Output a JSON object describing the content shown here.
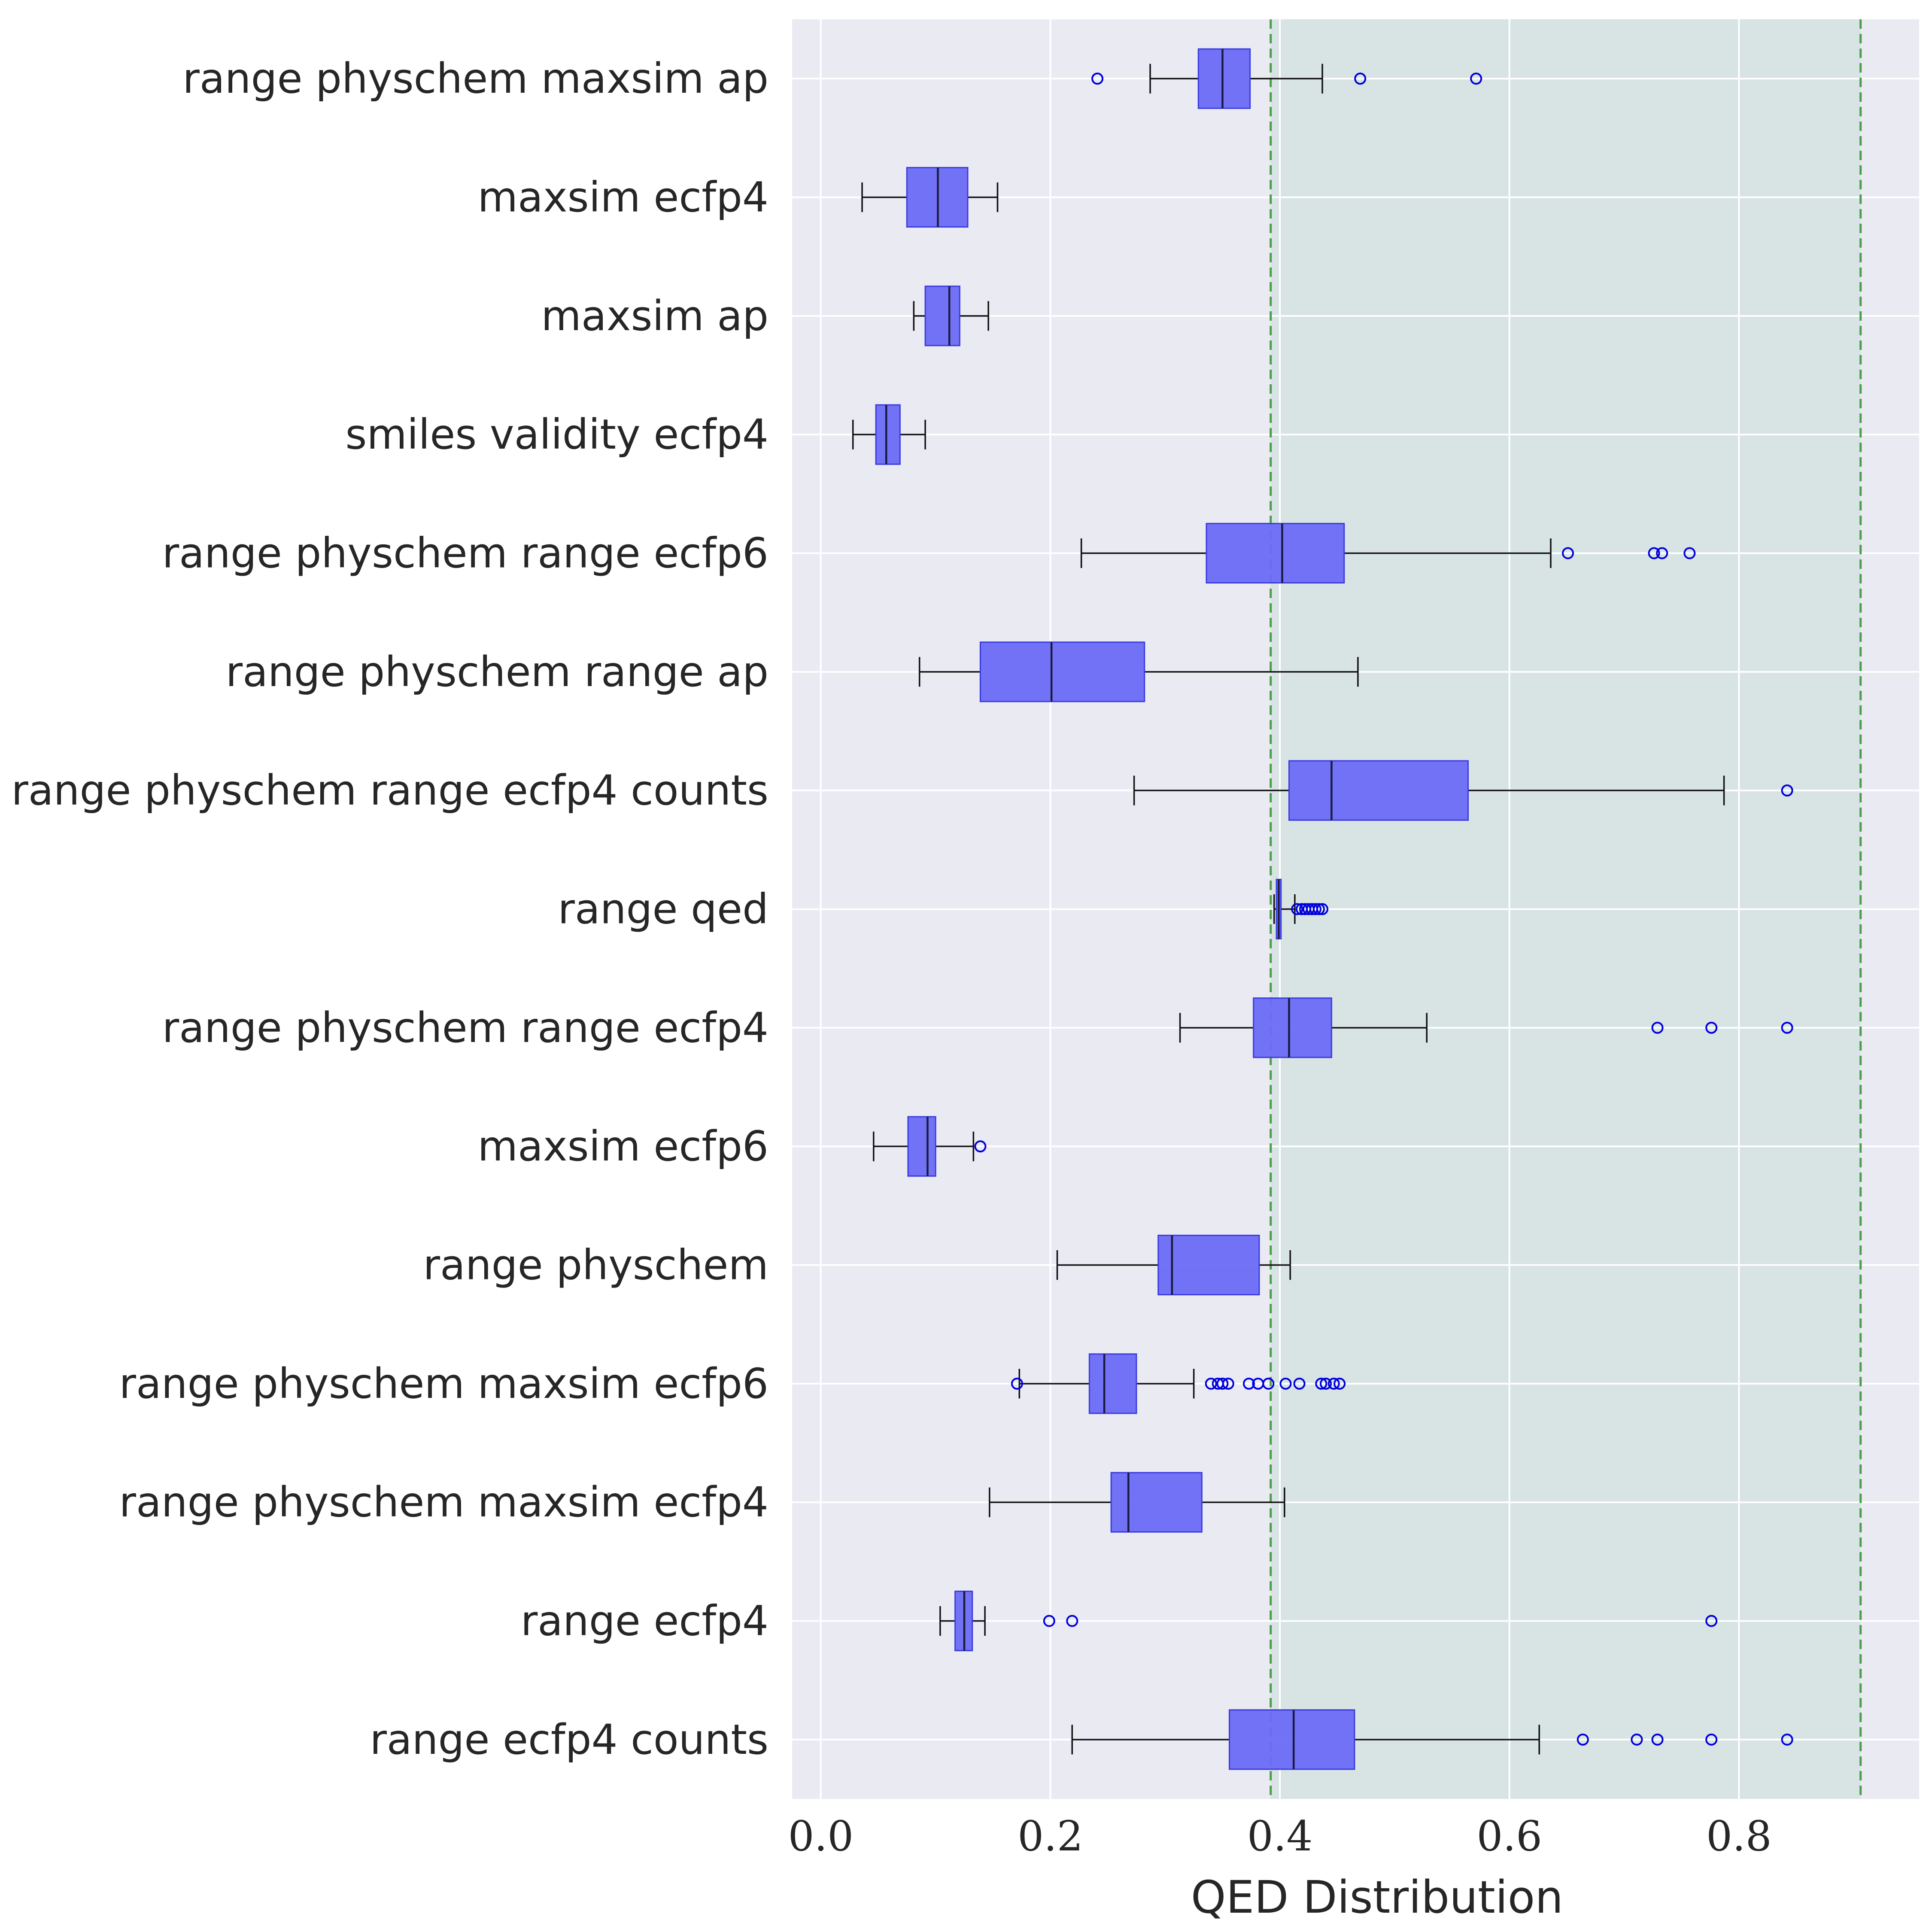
{
  "chart_data": {
    "type": "boxplot",
    "orientation": "horizontal",
    "title": "",
    "xlabel": "QED Distribution",
    "ylabel": "",
    "xlim": [
      -0.025,
      0.957
    ],
    "xticks": [
      0.0,
      0.2,
      0.4,
      0.6,
      0.8
    ],
    "xtick_labels": [
      "0.0",
      "0.2",
      "0.4",
      "0.6",
      "0.8"
    ],
    "grid": true,
    "shaded_range": [
      0.392,
      0.906
    ],
    "reference_lines": [
      0.392,
      0.906
    ],
    "colors": {
      "background": "#eaeaf2",
      "grid": "#ffffff",
      "box_fill": "#6b6bf5",
      "box_edge": "#3b3be0",
      "median": "#1a1a40",
      "whisker": "#111111",
      "outlier": "#0000dd",
      "shaded": "#d8e3e3",
      "reference_line": "#4a9e4a"
    },
    "categories": [
      "range physchem maxsim ap",
      "maxsim ecfp4",
      "maxsim ap",
      "smiles validity ecfp4",
      "range physchem range ecfp6",
      "range physchem range ap",
      "range physchem range ecfp4 counts",
      "range qed",
      "range physchem range ecfp4",
      "maxsim ecfp6",
      "range physchem",
      "range physchem maxsim ecfp6",
      "range physchem maxsim ecfp4",
      "range ecfp4",
      "range ecfp4 counts"
    ],
    "boxes": [
      {
        "whislo": 0.287,
        "q1": 0.329,
        "med": 0.35,
        "q3": 0.374,
        "whishi": 0.437,
        "fliers": [
          0.241,
          0.47,
          0.571
        ]
      },
      {
        "whislo": 0.036,
        "q1": 0.075,
        "med": 0.102,
        "q3": 0.128,
        "whishi": 0.154,
        "fliers": []
      },
      {
        "whislo": 0.081,
        "q1": 0.091,
        "med": 0.112,
        "q3": 0.121,
        "whishi": 0.146,
        "fliers": []
      },
      {
        "whislo": 0.028,
        "q1": 0.048,
        "med": 0.057,
        "q3": 0.069,
        "whishi": 0.091,
        "fliers": []
      },
      {
        "whislo": 0.227,
        "q1": 0.336,
        "med": 0.402,
        "q3": 0.456,
        "whishi": 0.636,
        "fliers": [
          0.651,
          0.726,
          0.733,
          0.757
        ]
      },
      {
        "whislo": 0.086,
        "q1": 0.139,
        "med": 0.201,
        "q3": 0.282,
        "whishi": 0.468,
        "fliers": []
      },
      {
        "whislo": 0.273,
        "q1": 0.408,
        "med": 0.445,
        "q3": 0.564,
        "whishi": 0.787,
        "fliers": [
          0.842
        ]
      },
      {
        "whislo": 0.395,
        "q1": 0.397,
        "med": 0.399,
        "q3": 0.401,
        "whishi": 0.413,
        "fliers": [
          0.415,
          0.419,
          0.422,
          0.425,
          0.428,
          0.431,
          0.434,
          0.437
        ]
      },
      {
        "whislo": 0.313,
        "q1": 0.377,
        "med": 0.408,
        "q3": 0.445,
        "whishi": 0.528,
        "fliers": [
          0.729,
          0.776,
          0.842
        ]
      },
      {
        "whislo": 0.046,
        "q1": 0.076,
        "med": 0.093,
        "q3": 0.1,
        "whishi": 0.133,
        "fliers": [
          0.139
        ]
      },
      {
        "whislo": 0.206,
        "q1": 0.294,
        "med": 0.306,
        "q3": 0.382,
        "whishi": 0.409,
        "fliers": []
      },
      {
        "whislo": 0.173,
        "q1": 0.234,
        "med": 0.247,
        "q3": 0.275,
        "whishi": 0.325,
        "fliers": [
          0.171,
          0.34,
          0.346,
          0.35,
          0.355,
          0.373,
          0.381,
          0.39,
          0.405,
          0.417,
          0.436,
          0.44,
          0.447,
          0.452
        ]
      },
      {
        "whislo": 0.147,
        "q1": 0.253,
        "med": 0.268,
        "q3": 0.332,
        "whishi": 0.404,
        "fliers": []
      },
      {
        "whislo": 0.104,
        "q1": 0.117,
        "med": 0.125,
        "q3": 0.132,
        "whishi": 0.143,
        "fliers": [
          0.199,
          0.219,
          0.776
        ]
      },
      {
        "whislo": 0.219,
        "q1": 0.356,
        "med": 0.412,
        "q3": 0.465,
        "whishi": 0.626,
        "fliers": [
          0.664,
          0.711,
          0.729,
          0.776,
          0.842
        ]
      }
    ]
  }
}
